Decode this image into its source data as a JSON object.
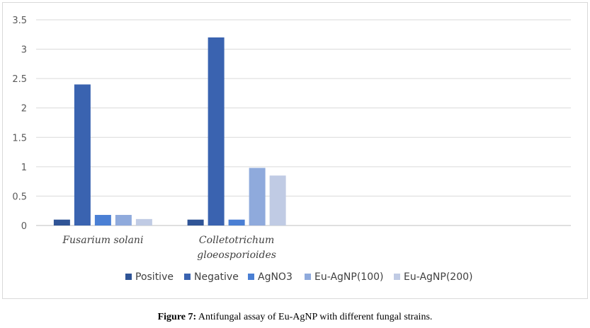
{
  "chart_data": {
    "type": "bar",
    "title": "",
    "xlabel": "",
    "ylabel": "",
    "ylim": [
      0,
      3.5
    ],
    "yticks": [
      "0",
      "0.5",
      "1",
      "1.5",
      "2",
      "2.5",
      "3",
      "3.5"
    ],
    "grid": true,
    "legend_position": "bottom",
    "categories": [
      [
        "Fusarium solani"
      ],
      [
        "Colletotrichum",
        "gloeosporioides"
      ],
      [],
      []
    ],
    "series": [
      {
        "name": "Positive",
        "color": "#2f5496",
        "values": [
          0.1,
          0.1,
          0,
          0
        ]
      },
      {
        "name": "Negative",
        "color": "#3a63b0",
        "values": [
          2.4,
          3.2,
          0,
          0
        ]
      },
      {
        "name": "AgNO3",
        "color": "#4a7fd4",
        "values": [
          0.18,
          0.1,
          0,
          0
        ]
      },
      {
        "name": "Eu-AgNP(100)",
        "color": "#8faadc",
        "values": [
          0.18,
          0.98,
          0,
          0
        ]
      },
      {
        "name": "Eu-AgNP(200)",
        "color": "#c0cbe4",
        "values": [
          0.11,
          0.85,
          0,
          0
        ]
      }
    ]
  },
  "caption": {
    "prefix": "Figure 7:",
    "text": " Antifungal assay of Eu-AgNP with different fungal strains."
  }
}
